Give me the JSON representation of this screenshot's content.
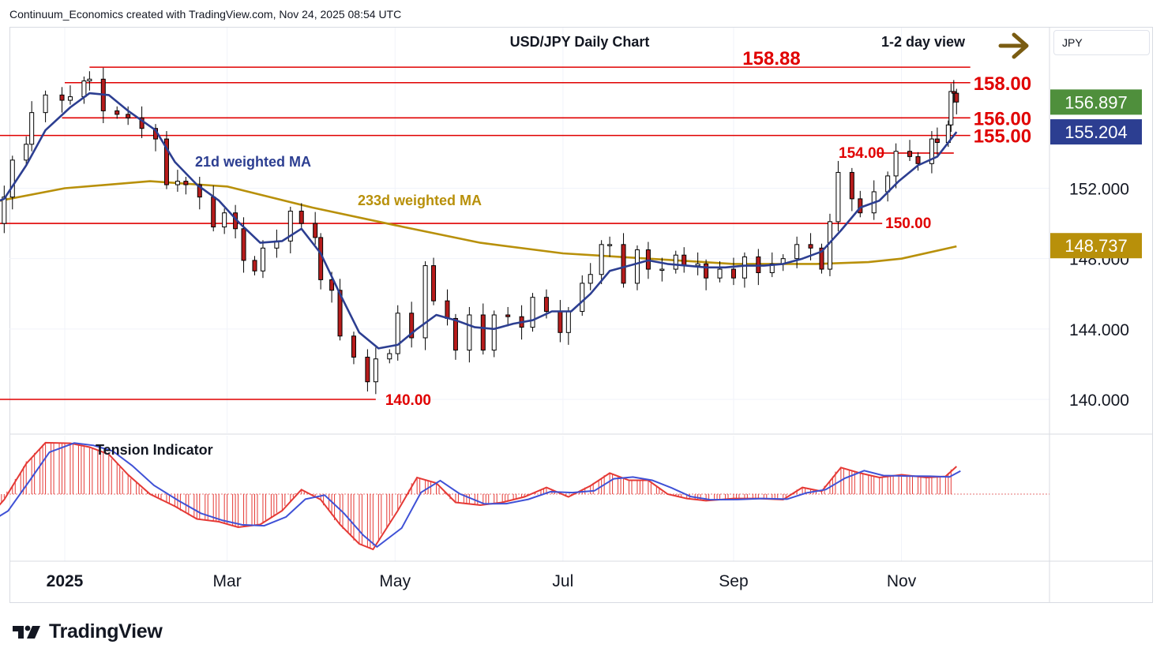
{
  "header": {
    "attribution": "Continuum_Economics created with TradingView.com, Nov 24, 2025 08:54 UTC"
  },
  "symbol_box": {
    "label": "JPY"
  },
  "brand": {
    "name": "TradingView"
  },
  "colors": {
    "up_candle": "#ffffff",
    "down_candle": "#b71c1c",
    "wick": "#000000",
    "ma21": "#2c3e91",
    "ma233": "#b8900a",
    "level_line": "#e00000",
    "tension_bar": "#e53935",
    "tension_signal": "#3f51d6",
    "arrow": "#7a5c12",
    "last_price_bg": "#4f8f3c",
    "ma21_tag_bg": "#2c3e91",
    "ma233_tag_bg": "#b8900a"
  },
  "chart_data": {
    "type": "candlestick",
    "title": "USD/JPY Daily Chart",
    "view_label": "1-2 day view",
    "view_direction": "arrow-right-icon",
    "x_tick_labels": [
      "2025",
      "Mar",
      "May",
      "Jul",
      "Sep",
      "Nov"
    ],
    "x_range": [
      "2024-12-02",
      "2025-12-31"
    ],
    "y_tick_labels": [
      "140.000",
      "144.000",
      "148.000",
      "152.000"
    ],
    "ylim": [
      138.0,
      162.0
    ],
    "price_tags": [
      {
        "label": "156.897",
        "value": 156.897,
        "kind": "last_price"
      },
      {
        "label": "155.204",
        "value": 155.204,
        "kind": "21d_ma"
      },
      {
        "label": "148.737",
        "value": 148.737,
        "kind": "233d_ma"
      }
    ],
    "levels": [
      {
        "label": "158.88",
        "value": 158.88,
        "start": "2025-01-10",
        "end": "2025-11-26"
      },
      {
        "label": "158.00",
        "value": 158.0,
        "start": "2025-01-01",
        "end": "2025-11-26"
      },
      {
        "label": "156.00",
        "value": 156.0,
        "start": "2024-12-31",
        "end": "2025-11-26"
      },
      {
        "label": "155.00",
        "value": 155.0,
        "start": "2024-12-02",
        "end": "2025-11-26"
      },
      {
        "label": "154.00",
        "value": 154.0,
        "start": "2025-10-23",
        "end": "2025-11-20"
      },
      {
        "label": "150.00",
        "value": 150.0,
        "start": "2024-12-02",
        "end": "2025-10-25"
      },
      {
        "label": "140.00",
        "value": 140.0,
        "start": "2024-12-02",
        "end": "2025-04-24"
      }
    ],
    "annotations": [
      "21d weighted MA",
      "233d weighted MA"
    ],
    "close_series": [
      [
        "2024-12-02",
        149.8
      ],
      [
        "2024-12-06",
        150.0
      ],
      [
        "2024-12-10",
        151.5
      ],
      [
        "2024-12-13",
        153.6
      ],
      [
        "2024-12-18",
        154.5
      ],
      [
        "2024-12-20",
        156.3
      ],
      [
        "2024-12-25",
        157.3
      ],
      [
        "2024-12-31",
        157.0
      ],
      [
        "2025-01-03",
        157.2
      ],
      [
        "2025-01-08",
        158.1
      ],
      [
        "2025-01-10",
        158.2
      ],
      [
        "2025-01-15",
        156.4
      ],
      [
        "2025-01-20",
        156.2
      ],
      [
        "2025-01-24",
        156.0
      ],
      [
        "2025-01-29",
        155.4
      ],
      [
        "2025-02-03",
        154.8
      ],
      [
        "2025-02-07",
        152.2
      ],
      [
        "2025-02-11",
        152.4
      ],
      [
        "2025-02-14",
        152.2
      ],
      [
        "2025-02-19",
        151.5
      ],
      [
        "2025-02-24",
        149.8
      ],
      [
        "2025-02-28",
        150.6
      ],
      [
        "2025-03-04",
        149.7
      ],
      [
        "2025-03-07",
        147.9
      ],
      [
        "2025-03-11",
        147.3
      ],
      [
        "2025-03-14",
        148.6
      ],
      [
        "2025-03-19",
        149.0
      ],
      [
        "2025-03-24",
        150.7
      ],
      [
        "2025-03-28",
        150.0
      ],
      [
        "2025-04-02",
        149.2
      ],
      [
        "2025-04-04",
        146.8
      ],
      [
        "2025-04-08",
        146.2
      ],
      [
        "2025-04-11",
        143.6
      ],
      [
        "2025-04-16",
        142.4
      ],
      [
        "2025-04-21",
        141.0
      ],
      [
        "2025-04-24",
        142.3
      ],
      [
        "2025-04-29",
        142.6
      ],
      [
        "2025-05-02",
        144.9
      ],
      [
        "2025-05-07",
        143.5
      ],
      [
        "2025-05-12",
        147.6
      ],
      [
        "2025-05-15",
        145.6
      ],
      [
        "2025-05-20",
        144.6
      ],
      [
        "2025-05-23",
        142.8
      ],
      [
        "2025-05-28",
        144.8
      ],
      [
        "2025-06-02",
        142.8
      ],
      [
        "2025-06-06",
        144.8
      ],
      [
        "2025-06-11",
        144.7
      ],
      [
        "2025-06-16",
        144.1
      ],
      [
        "2025-06-20",
        145.8
      ],
      [
        "2025-06-25",
        145.0
      ],
      [
        "2025-06-30",
        143.8
      ],
      [
        "2025-07-03",
        145.0
      ],
      [
        "2025-07-08",
        146.6
      ],
      [
        "2025-07-11",
        147.1
      ],
      [
        "2025-07-15",
        148.8
      ],
      [
        "2025-07-18",
        148.8
      ],
      [
        "2025-07-23",
        146.6
      ],
      [
        "2025-07-28",
        148.5
      ],
      [
        "2025-08-01",
        147.4
      ],
      [
        "2025-08-06",
        147.4
      ],
      [
        "2025-08-11",
        148.2
      ],
      [
        "2025-08-14",
        147.6
      ],
      [
        "2025-08-19",
        147.7
      ],
      [
        "2025-08-22",
        146.9
      ],
      [
        "2025-08-27",
        147.4
      ],
      [
        "2025-09-01",
        146.9
      ],
      [
        "2025-09-05",
        148.1
      ],
      [
        "2025-09-10",
        147.2
      ],
      [
        "2025-09-15",
        147.7
      ],
      [
        "2025-09-19",
        148.0
      ],
      [
        "2025-09-24",
        148.8
      ],
      [
        "2025-09-29",
        148.6
      ],
      [
        "2025-10-03",
        147.4
      ],
      [
        "2025-10-06",
        150.1
      ],
      [
        "2025-10-09",
        152.9
      ],
      [
        "2025-10-14",
        151.4
      ],
      [
        "2025-10-17",
        150.6
      ],
      [
        "2025-10-22",
        151.8
      ],
      [
        "2025-10-27",
        152.7
      ],
      [
        "2025-10-30",
        154.1
      ],
      [
        "2025-11-04",
        153.8
      ],
      [
        "2025-11-07",
        153.4
      ],
      [
        "2025-11-12",
        154.8
      ],
      [
        "2025-11-14",
        154.6
      ],
      [
        "2025-11-18",
        155.6
      ],
      [
        "2025-11-19",
        157.5
      ],
      [
        "2025-11-20",
        157.4
      ],
      [
        "2025-11-21",
        156.9
      ]
    ],
    "ma21_series": [
      [
        "2024-12-02",
        150.9
      ],
      [
        "2024-12-10",
        151.4
      ],
      [
        "2024-12-18",
        153.3
      ],
      [
        "2024-12-25",
        155.3
      ],
      [
        "2025-01-03",
        156.6
      ],
      [
        "2025-01-10",
        157.4
      ],
      [
        "2025-01-17",
        157.3
      ],
      [
        "2025-01-24",
        156.4
      ],
      [
        "2025-02-03",
        155.3
      ],
      [
        "2025-02-10",
        153.5
      ],
      [
        "2025-02-18",
        152.2
      ],
      [
        "2025-02-26",
        151.3
      ],
      [
        "2025-03-05",
        150.1
      ],
      [
        "2025-03-13",
        148.9
      ],
      [
        "2025-03-21",
        149.0
      ],
      [
        "2025-03-28",
        149.7
      ],
      [
        "2025-04-04",
        148.3
      ],
      [
        "2025-04-11",
        146.0
      ],
      [
        "2025-04-18",
        143.8
      ],
      [
        "2025-04-25",
        142.9
      ],
      [
        "2025-05-02",
        143.1
      ],
      [
        "2025-05-09",
        144.0
      ],
      [
        "2025-05-16",
        144.8
      ],
      [
        "2025-05-23",
        144.5
      ],
      [
        "2025-05-30",
        144.1
      ],
      [
        "2025-06-06",
        144.0
      ],
      [
        "2025-06-13",
        144.3
      ],
      [
        "2025-06-20",
        144.5
      ],
      [
        "2025-06-27",
        145.0
      ],
      [
        "2025-07-04",
        145.0
      ],
      [
        "2025-07-11",
        146.0
      ],
      [
        "2025-07-18",
        147.3
      ],
      [
        "2025-07-25",
        147.6
      ],
      [
        "2025-08-01",
        147.9
      ],
      [
        "2025-08-08",
        147.7
      ],
      [
        "2025-08-15",
        147.6
      ],
      [
        "2025-08-22",
        147.5
      ],
      [
        "2025-08-29",
        147.5
      ],
      [
        "2025-09-05",
        147.6
      ],
      [
        "2025-09-12",
        147.6
      ],
      [
        "2025-09-19",
        147.7
      ],
      [
        "2025-09-26",
        148.0
      ],
      [
        "2025-10-03",
        148.4
      ],
      [
        "2025-10-10",
        149.6
      ],
      [
        "2025-10-17",
        150.9
      ],
      [
        "2025-10-24",
        151.3
      ],
      [
        "2025-10-31",
        152.4
      ],
      [
        "2025-11-07",
        153.3
      ],
      [
        "2025-11-14",
        153.8
      ],
      [
        "2025-11-21",
        155.2
      ]
    ],
    "ma233_series": [
      [
        "2024-12-02",
        151.1
      ],
      [
        "2025-01-01",
        152.0
      ],
      [
        "2025-02-01",
        152.4
      ],
      [
        "2025-03-01",
        152.1
      ],
      [
        "2025-04-01",
        150.9
      ],
      [
        "2025-05-01",
        149.9
      ],
      [
        "2025-06-01",
        148.9
      ],
      [
        "2025-07-01",
        148.3
      ],
      [
        "2025-08-01",
        148.0
      ],
      [
        "2025-09-01",
        147.7
      ],
      [
        "2025-10-01",
        147.7
      ],
      [
        "2025-10-20",
        147.8
      ],
      [
        "2025-11-01",
        148.0
      ],
      [
        "2025-11-21",
        148.7
      ]
    ],
    "tension_indicator": {
      "label": "Tension Indicator",
      "ylim": [
        -1.0,
        1.0
      ],
      "series": [
        [
          "2024-12-02",
          -0.55
        ],
        [
          "2024-12-10",
          -0.1
        ],
        [
          "2024-12-18",
          0.55
        ],
        [
          "2024-12-25",
          0.93
        ],
        [
          "2025-01-03",
          0.92
        ],
        [
          "2025-01-10",
          0.85
        ],
        [
          "2025-01-17",
          0.72
        ],
        [
          "2025-01-24",
          0.35
        ],
        [
          "2025-02-01",
          0.0
        ],
        [
          "2025-02-10",
          -0.22
        ],
        [
          "2025-02-18",
          -0.45
        ],
        [
          "2025-02-26",
          -0.5
        ],
        [
          "2025-03-05",
          -0.6
        ],
        [
          "2025-03-13",
          -0.55
        ],
        [
          "2025-03-21",
          -0.3
        ],
        [
          "2025-03-28",
          0.08
        ],
        [
          "2025-04-04",
          -0.1
        ],
        [
          "2025-04-11",
          -0.55
        ],
        [
          "2025-04-18",
          -0.9
        ],
        [
          "2025-04-23",
          -1.0
        ],
        [
          "2025-05-02",
          -0.3
        ],
        [
          "2025-05-09",
          0.3
        ],
        [
          "2025-05-16",
          0.2
        ],
        [
          "2025-05-23",
          -0.15
        ],
        [
          "2025-06-01",
          -0.2
        ],
        [
          "2025-06-09",
          -0.15
        ],
        [
          "2025-06-17",
          -0.05
        ],
        [
          "2025-06-25",
          0.12
        ],
        [
          "2025-07-03",
          -0.05
        ],
        [
          "2025-07-11",
          0.15
        ],
        [
          "2025-07-18",
          0.38
        ],
        [
          "2025-07-25",
          0.25
        ],
        [
          "2025-08-01",
          0.25
        ],
        [
          "2025-08-08",
          0.0
        ],
        [
          "2025-08-15",
          -0.08
        ],
        [
          "2025-08-22",
          -0.12
        ],
        [
          "2025-09-01",
          -0.08
        ],
        [
          "2025-09-10",
          -0.08
        ],
        [
          "2025-09-19",
          -0.1
        ],
        [
          "2025-09-26",
          0.12
        ],
        [
          "2025-10-03",
          0.05
        ],
        [
          "2025-10-10",
          0.48
        ],
        [
          "2025-10-17",
          0.38
        ],
        [
          "2025-10-24",
          0.3
        ],
        [
          "2025-11-01",
          0.35
        ],
        [
          "2025-11-10",
          0.3
        ],
        [
          "2025-11-17",
          0.32
        ],
        [
          "2025-11-21",
          0.5
        ]
      ]
    }
  }
}
